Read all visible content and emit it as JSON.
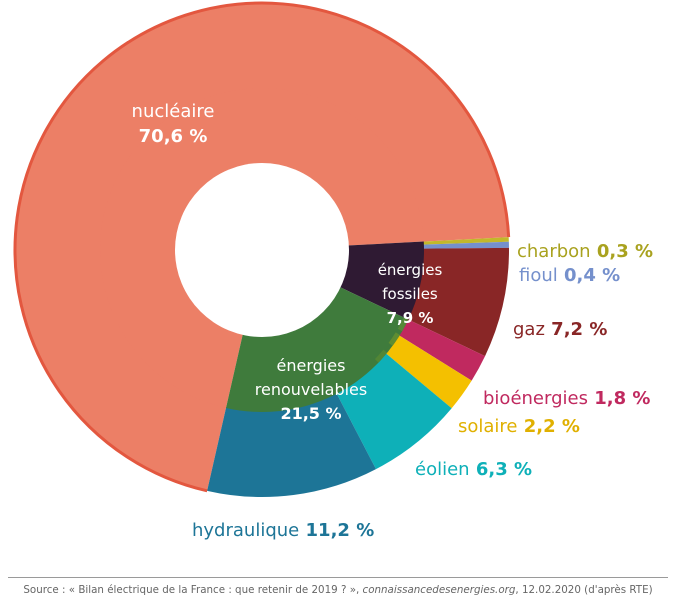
{
  "chart_data": {
    "type": "pie",
    "variant": "nested-donut",
    "inner_ring": [
      {
        "id": "nucleaire",
        "name": "nucléaire",
        "value": 70.6,
        "label": "70,6 %",
        "color": "#ec7f66"
      },
      {
        "id": "fossiles",
        "name": "énergies fossiles",
        "name_lines": [
          "énergies",
          "fossiles"
        ],
        "value": 7.9,
        "label": "7,9 %",
        "color": "#2f1a33"
      },
      {
        "id": "renouvelables",
        "name": "énergies renouvelables",
        "name_lines": [
          "énergies",
          "renouvelables"
        ],
        "value": 21.5,
        "label": "21,5 %",
        "color": "#3f7b3c"
      }
    ],
    "outer_ring": [
      {
        "id": "nucleaire",
        "name": "nucléaire",
        "value": 70.6,
        "color": "#ec7f66"
      },
      {
        "id": "charbon",
        "name": "charbon",
        "value": 0.3,
        "label": "0,3 %",
        "color": "#c2b82a"
      },
      {
        "id": "fioul",
        "name": "fioul",
        "value": 0.4,
        "label": "0,4 %",
        "color": "#7590cc"
      },
      {
        "id": "gaz",
        "name": "gaz",
        "value": 7.2,
        "label": "7,2 %",
        "color": "#892626"
      },
      {
        "id": "bioenergies",
        "name": "bioénergies",
        "value": 1.8,
        "label": "1,8 %",
        "color": "#c0295f"
      },
      {
        "id": "solaire",
        "name": "solaire",
        "value": 2.2,
        "label": "2,2 %",
        "color": "#f4c000"
      },
      {
        "id": "eolien",
        "name": "éolien",
        "value": 6.3,
        "label": "6,3 %",
        "color": "#0eb0b8"
      },
      {
        "id": "hydraulique",
        "name": "hydraulique",
        "value": 11.2,
        "label": "11,2 %",
        "color": "#1d7597"
      }
    ]
  },
  "source": {
    "prefix": "Source : « Bilan électrique de la France : que retenir de 2019 ? », ",
    "site": "connaissancedesenergies.org",
    "suffix": ", 12.02.2020 (d'après RTE)"
  }
}
